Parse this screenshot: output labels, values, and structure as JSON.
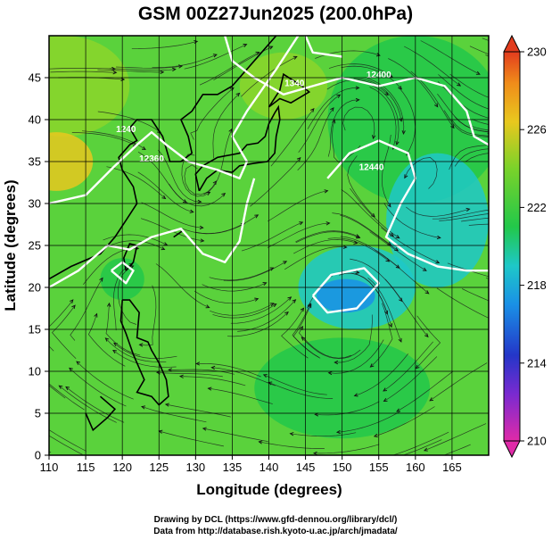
{
  "chart_data": {
    "type": "heatmap",
    "title": "GSM 00Z27Jun2025 (200.0hPa)",
    "xlabel": "Longitude (degrees)",
    "ylabel": "Latitude  (degrees)",
    "xlim": [
      110,
      170
    ],
    "ylim": [
      0,
      50
    ],
    "xticks": [
      110,
      115,
      120,
      125,
      130,
      135,
      140,
      145,
      150,
      155,
      160,
      165
    ],
    "yticks": [
      0,
      5,
      10,
      15,
      20,
      25,
      30,
      35,
      40,
      45
    ],
    "grid": true,
    "overlay": "streamlines",
    "contour_labels": [
      {
        "text": "1240",
        "lon": 120.5,
        "lat": 38.5
      },
      {
        "text": "12360",
        "lon": 124,
        "lat": 35
      },
      {
        "text": "1340",
        "lon": 143.5,
        "lat": 44
      },
      {
        "text": "12400",
        "lon": 155,
        "lat": 45
      },
      {
        "text": "12440",
        "lon": 154,
        "lat": 34
      }
    ],
    "colorbar": {
      "label_ticks": [
        230,
        226,
        222,
        218,
        214,
        210
      ],
      "range": [
        210,
        230
      ],
      "colors": [
        "#e23aa6",
        "#2a2ab8",
        "#1e8ee0",
        "#22c8d0",
        "#28c83c",
        "#6cd23a",
        "#f0a018",
        "#e83a1e"
      ]
    },
    "temperature_regions": [
      {
        "name": "warm-west",
        "lon": 111,
        "lat": 35,
        "value": 227
      },
      {
        "name": "cool-low",
        "lon": 152,
        "lat": 19,
        "value": 217
      },
      {
        "name": "cool-east",
        "lon": 160,
        "lat": 30,
        "value": 219
      }
    ]
  },
  "credits": {
    "line1": "Drawing by DCL (https://www.gfd-dennou.org/library/dcl/)",
    "line2": "Data from http://database.rish.kyoto-u.ac.jp/arch/jmadata/"
  }
}
